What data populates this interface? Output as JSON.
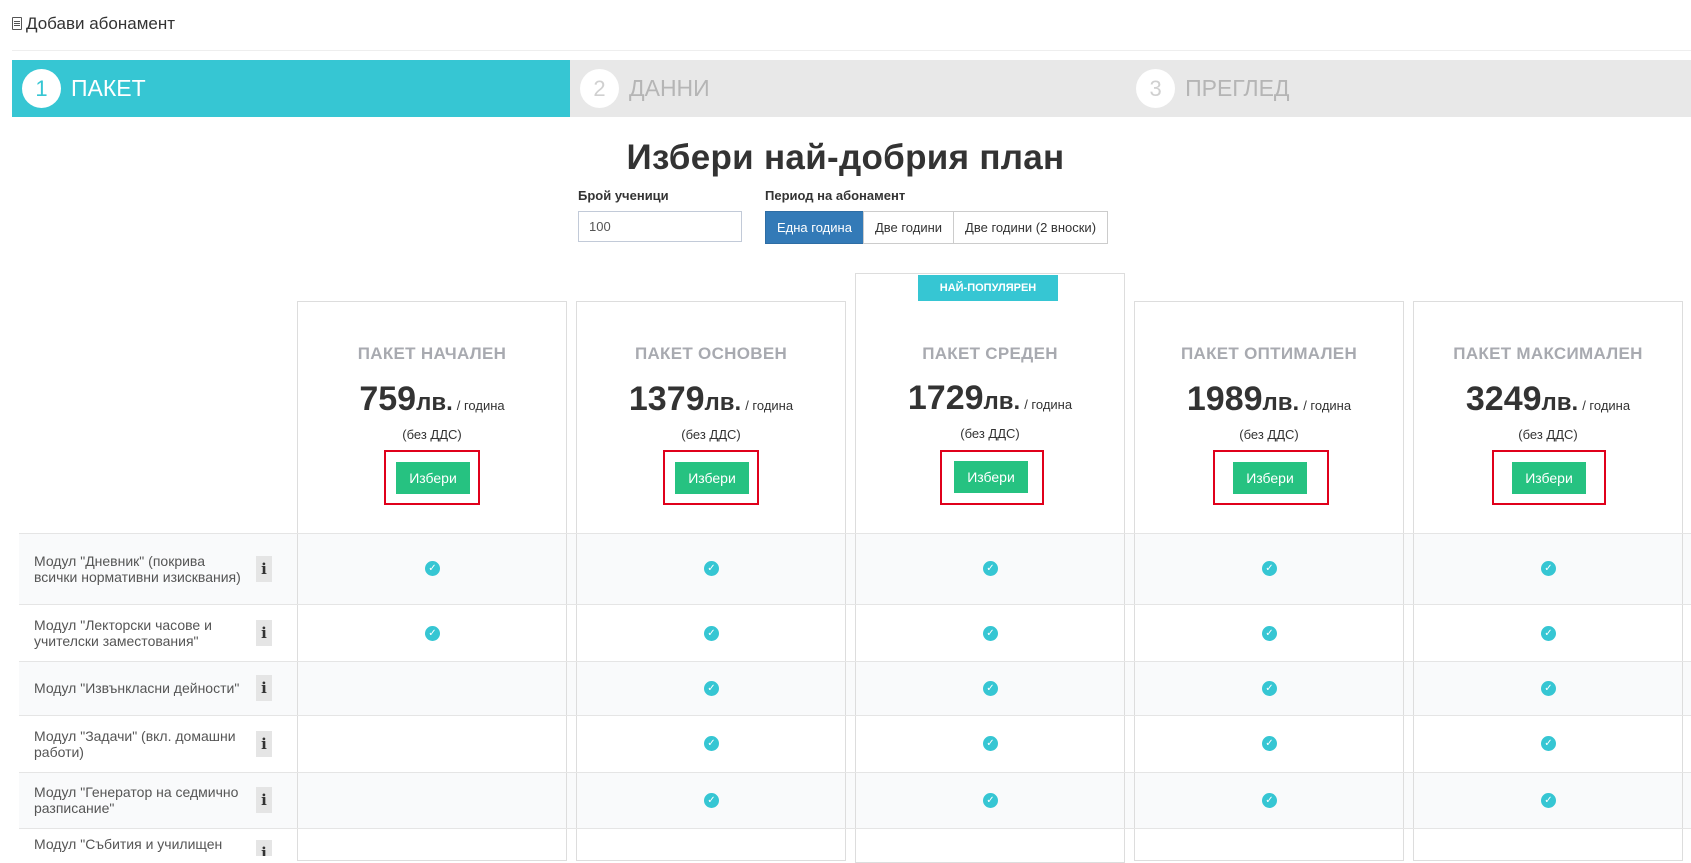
{
  "header": {
    "title": "Добави абонамент"
  },
  "wizard": {
    "steps": [
      {
        "num": "1",
        "label": "ПАКЕТ",
        "active": true
      },
      {
        "num": "2",
        "label": "ДАННИ",
        "active": false
      },
      {
        "num": "3",
        "label": "ПРЕГЛЕД",
        "active": false
      }
    ]
  },
  "main": {
    "title": "Избери най-добрия план",
    "students_label": "Брой ученици",
    "students_value": "100",
    "period_label": "Период на абонамент",
    "period_options": [
      "Една година",
      "Две години",
      "Две години (2 вноски)"
    ],
    "period_selected": "Една година"
  },
  "popular_badge": "НАЙ-ПОПУЛЯРЕН",
  "plans": [
    {
      "name": "ПАКЕТ НАЧАЛЕН",
      "price": "759",
      "currency": "лв.",
      "per": "/ година",
      "note": "(без ДДС)",
      "button": "Избери"
    },
    {
      "name": "ПАКЕТ ОСНОВЕН",
      "price": "1379",
      "currency": "лв.",
      "per": "/ година",
      "note": "(без ДДС)",
      "button": "Избери"
    },
    {
      "name": "ПАКЕТ СРЕДЕН",
      "price": "1729",
      "currency": "лв.",
      "per": "/ година",
      "note": "(без ДДС)",
      "button": "Избери"
    },
    {
      "name": "ПАКЕТ ОПТИМАЛЕН",
      "price": "1989",
      "currency": "лв.",
      "per": "/ година",
      "note": "(без ДДС)",
      "button": "Избери"
    },
    {
      "name": "ПАКЕТ МАКСИМАЛЕН",
      "price": "3249",
      "currency": "лв.",
      "per": "/ година",
      "note": "(без ДДС)",
      "button": "Избери"
    }
  ],
  "features": [
    {
      "label": "Модул \"Дневник\" (покрива всички нормативни изисквания)",
      "info": "i",
      "included": [
        true,
        true,
        true,
        true,
        true
      ]
    },
    {
      "label": "Модул \"Лекторски часове и учителски заместования\"",
      "info": "i",
      "included": [
        true,
        true,
        true,
        true,
        true
      ]
    },
    {
      "label": "Модул \"Извънкласни дейности\"",
      "info": "i",
      "included": [
        false,
        true,
        true,
        true,
        true
      ]
    },
    {
      "label": "Модул \"Задачи\" (вкл. домашни работи)",
      "info": "i",
      "included": [
        false,
        true,
        true,
        true,
        true
      ]
    },
    {
      "label": "Модул \"Генератор на седмично разписание\"",
      "info": "i",
      "included": [
        false,
        true,
        true,
        true,
        true
      ]
    },
    {
      "label": "Модул \"Събития и училищен",
      "info": "i",
      "included": [
        false,
        true,
        true,
        true,
        true
      ]
    }
  ],
  "colors": {
    "accent": "#36c6d3",
    "primary": "#337ab7",
    "success": "#26c281",
    "highlight": "#e0001b"
  },
  "icons": {
    "check": "check-circle-icon",
    "info": "info-icon",
    "header": "document-icon"
  }
}
